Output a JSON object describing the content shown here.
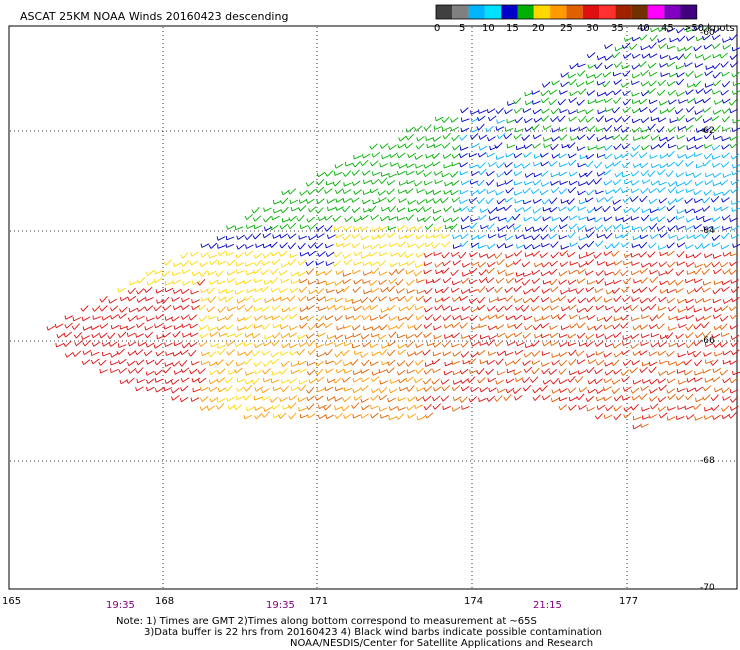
{
  "title": "ASCAT 25KM NOAA Winds 20160423 descending",
  "legend": {
    "labels": [
      "0",
      "5",
      "10",
      "15",
      "20",
      "25",
      "30",
      "35",
      "40",
      "45",
      ">50 knots"
    ],
    "colors": [
      "#404040",
      "#808080",
      "#00b4ff",
      "#00e0ff",
      "#0000c8",
      "#00b000",
      "#ffd800",
      "#ff9a00",
      "#e06000",
      "#e01010",
      "#ff3030",
      "#a02000",
      "#703000",
      "#ff00ff",
      "#8000c0",
      "#400080"
    ]
  },
  "axes": {
    "lon_ticks": [
      "165",
      "168",
      "171",
      "174",
      "177"
    ],
    "lat_ticks": [
      "-60",
      "-62",
      "-64",
      "-66",
      "-68",
      "-70"
    ],
    "time_labels": [
      "19:35",
      "19:35",
      "21:15"
    ]
  },
  "notes": {
    "line1": "Note: 1) Times are GMT 2)Times along bottom correspond to measurement at ~65S",
    "line2": "3)Data buffer is 22 hrs from 20160423 4) Black wind barbs indicate possible contamination",
    "line3": "NOAA/NESDIS/Center for Satellite Applications and Research"
  }
}
